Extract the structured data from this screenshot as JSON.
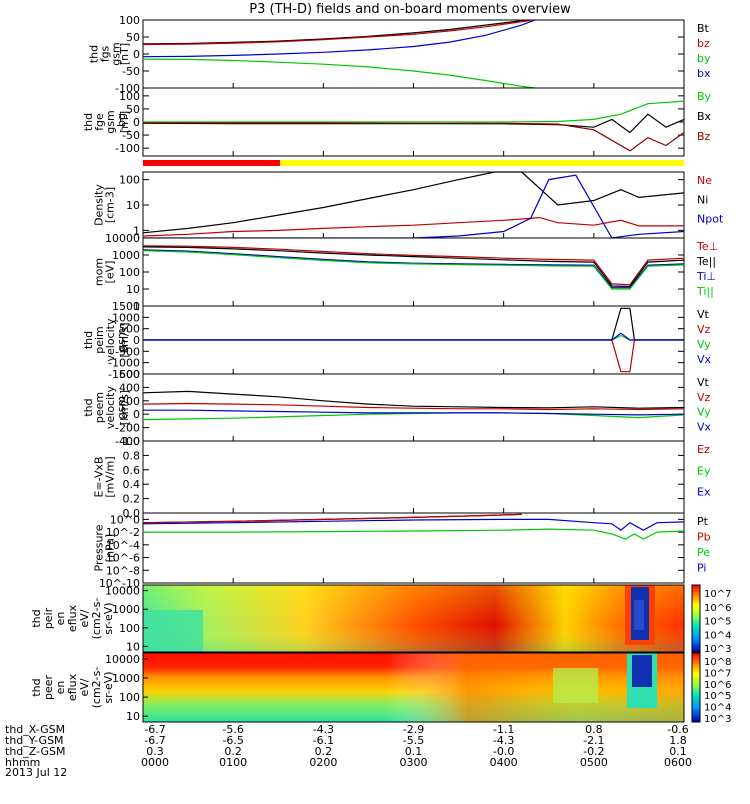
{
  "title": "P3 (TH-D) fields and on-board moments overview",
  "date_label": "2013 Jul 12",
  "chart_data": {
    "type": "line",
    "x_ticks": [
      "0000",
      "0100",
      "0200",
      "0300",
      "0400",
      "0500",
      "0600"
    ],
    "x_row_labels": [
      "thd_X-GSM",
      "thd_Y-GSM",
      "thd_Z-GSM",
      "hhmm"
    ],
    "x_row_values": [
      [
        "-6.7",
        "-5.6",
        "-4.3",
        "-2.9",
        "-1.1",
        "0.8",
        "-0.6"
      ],
      [
        "-6.7",
        "-6.5",
        "-6.1",
        "-5.5",
        "-4.3",
        "-2.1",
        "1.8"
      ],
      [
        "0.3",
        "0.2",
        "0.2",
        "0.1",
        "-0.0",
        "-0.2",
        "0.1"
      ]
    ],
    "panels": [
      {
        "ylabel": [
          "thd",
          "fgs",
          "gsm",
          "[nT]"
        ],
        "yticks": [
          "100",
          "50",
          "0",
          "-50",
          "-100"
        ],
        "ylim": [
          -100,
          100
        ],
        "series": [
          {
            "name": "Bt",
            "color": "#000000",
            "x": [
              0,
              0.5,
              1,
              1.5,
              2,
              2.5,
              3,
              3.4,
              3.8,
              4.2,
              4.35
            ],
            "y": [
              30,
              31,
              34,
              38,
              44,
              52,
              62,
              72,
              85,
              98,
              100
            ]
          },
          {
            "name": "bz",
            "color": "#c00000",
            "x": [
              0,
              0.5,
              1,
              1.5,
              2,
              2.5,
              3,
              3.4,
              3.8,
              4.2,
              4.35
            ],
            "y": [
              28,
              29,
              32,
              36,
              42,
              50,
              58,
              68,
              80,
              95,
              100
            ]
          },
          {
            "name": "by",
            "color": "#00c800",
            "x": [
              0,
              0.5,
              1,
              1.5,
              2,
              2.5,
              3,
              3.4,
              3.8,
              4.2,
              4.35
            ],
            "y": [
              -15,
              -16,
              -19,
              -24,
              -30,
              -38,
              -50,
              -62,
              -78,
              -95,
              -100
            ]
          },
          {
            "name": "bx",
            "color": "#0000d0",
            "x": [
              0,
              0.5,
              1,
              1.5,
              2,
              2.5,
              3,
              3.4,
              3.8,
              4.2,
              4.35
            ],
            "y": [
              -8,
              -7,
              -4,
              0,
              5,
              12,
              22,
              35,
              55,
              85,
              100
            ]
          }
        ]
      },
      {
        "ylabel": [
          "thd",
          "fge",
          "gsm",
          "-bg",
          "[nT]"
        ],
        "yticks": [
          "100",
          "50",
          "0",
          "-50",
          "-100"
        ],
        "ylim": [
          -130,
          130
        ],
        "series": [
          {
            "name": "By",
            "color": "#00c800",
            "x": [
              0,
              1,
              2,
              3,
              4,
              4.6,
              5,
              5.3,
              5.6,
              6
            ],
            "y": [
              0,
              0,
              0,
              0,
              0,
              2,
              10,
              30,
              70,
              80
            ]
          },
          {
            "name": "Bx",
            "color": "#000000",
            "x": [
              0,
              1,
              2,
              3,
              4,
              4.6,
              5,
              5.2,
              5.4,
              5.6,
              5.8,
              6
            ],
            "y": [
              -5,
              -6,
              -6,
              -6,
              -7,
              -10,
              -20,
              10,
              -40,
              30,
              -20,
              10
            ]
          },
          {
            "name": "Bz",
            "color": "#8b0000",
            "x": [
              0,
              1,
              2,
              3,
              4,
              4.6,
              5,
              5.2,
              5.4,
              5.6,
              5.8,
              6
            ],
            "y": [
              -3,
              -4,
              -4,
              -5,
              -5,
              -8,
              -30,
              -70,
              -110,
              -60,
              -90,
              -40
            ]
          }
        ]
      },
      {
        "ylabel": [
          "Density",
          "[cm-3]"
        ],
        "yticks": [
          "100",
          "10",
          "1"
        ],
        "ylim": [
          0.5,
          200
        ],
        "log": true,
        "series": [
          {
            "name": "Ne",
            "color": "#c00000",
            "x": [
              0,
              0.5,
              1,
              1.5,
              2,
              2.5,
              3,
              3.5,
              4,
              4.4,
              4.6,
              5,
              5.3,
              5.5,
              6
            ],
            "y": [
              0.6,
              0.7,
              0.9,
              1.0,
              1.2,
              1.4,
              1.6,
              2.0,
              2.5,
              3.2,
              2.0,
              1.6,
              2.5,
              1.5,
              1.5
            ]
          },
          {
            "name": "Ni",
            "color": "#000000",
            "x": [
              0,
              0.5,
              1,
              1.5,
              2,
              2.5,
              3,
              3.5,
              3.9,
              4.2,
              4.6,
              5,
              5.3,
              5.5,
              6
            ],
            "y": [
              0.8,
              1.2,
              2,
              4,
              8,
              18,
              40,
              100,
              200,
              200,
              10,
              15,
              40,
              20,
              30
            ]
          },
          {
            "name": "Npot",
            "color": "#0000d0",
            "x": [
              0,
              1,
              2,
              3,
              3.5,
              4,
              4.3,
              4.5,
              4.8,
              5.2,
              5.5,
              6
            ],
            "y": [
              0.5,
              0.5,
              0.5,
              0.5,
              0.6,
              0.9,
              3,
              100,
              150,
              0.5,
              0.7,
              0.9
            ]
          }
        ]
      },
      {
        "ylabel": [
          "mom",
          "[eV]"
        ],
        "yticks": [
          "10000",
          "1000",
          "100",
          "10",
          "1"
        ],
        "ylim": [
          1,
          10000
        ],
        "log": true,
        "series": [
          {
            "name": "Te⊥",
            "color": "#c00000",
            "x": [
              0,
              0.5,
              1,
              1.5,
              2,
              2.5,
              3,
              3.5,
              4,
              4.5,
              5,
              5.2,
              5.4,
              5.6,
              6
            ],
            "y": [
              3500,
              3300,
              2800,
              2200,
              1600,
              1200,
              950,
              800,
              650,
              550,
              500,
              20,
              18,
              500,
              650
            ]
          },
          {
            "name": "Te||",
            "color": "#000000",
            "x": [
              0,
              0.5,
              1,
              1.5,
              2,
              2.5,
              3,
              3.5,
              4,
              4.5,
              5,
              5.2,
              5.4,
              5.6,
              6
            ],
            "y": [
              3000,
              2800,
              2300,
              1800,
              1300,
              1000,
              800,
              650,
              520,
              420,
              380,
              15,
              14,
              380,
              500
            ]
          },
          {
            "name": "Ti⊥",
            "color": "#0000d0",
            "x": [
              0,
              0.5,
              1,
              1.5,
              2,
              2.5,
              3,
              3.5,
              4,
              4.5,
              5,
              5.2,
              5.4,
              5.6,
              6
            ],
            "y": [
              2000,
              1700,
              1200,
              800,
              550,
              400,
              330,
              300,
              280,
              260,
              250,
              12,
              12,
              250,
              300
            ]
          },
          {
            "name": "Ti||",
            "color": "#00c800",
            "x": [
              0,
              0.5,
              1,
              1.5,
              2,
              2.5,
              3,
              3.5,
              4,
              4.5,
              5,
              5.2,
              5.4,
              5.6,
              6
            ],
            "y": [
              1800,
              1500,
              1050,
              700,
              480,
              350,
              300,
              270,
              250,
              230,
              220,
              10,
              10,
              220,
              260
            ]
          }
        ]
      },
      {
        "ylabel": [
          "thd",
          "peim",
          "velocity",
          "gsm",
          "[km/s]"
        ],
        "yticks": [
          "1500",
          "1000",
          "500",
          "0",
          "-500",
          "-1000",
          "-1500"
        ],
        "ylim": [
          -1500,
          1500
        ],
        "series": [
          {
            "name": "Vt",
            "color": "#000000",
            "x": [
              0,
              2,
              4,
              5.2,
              5.3,
              5.4,
              5.45,
              6
            ],
            "y": [
              10,
              10,
              10,
              10,
              1400,
              1400,
              10,
              10
            ]
          },
          {
            "name": "Vz",
            "color": "#c00000",
            "x": [
              0,
              2,
              4,
              5.2,
              5.3,
              5.4,
              5.45,
              6
            ],
            "y": [
              0,
              0,
              0,
              0,
              -1400,
              -1400,
              0,
              0
            ]
          },
          {
            "name": "Vy",
            "color": "#00c800",
            "x": [
              0,
              2,
              4,
              5.2,
              5.3,
              5.4,
              6
            ],
            "y": [
              0,
              0,
              0,
              0,
              200,
              0,
              0
            ]
          },
          {
            "name": "Vx",
            "color": "#0000d0",
            "x": [
              0,
              2,
              4,
              5.2,
              5.3,
              5.4,
              6
            ],
            "y": [
              0,
              0,
              0,
              0,
              300,
              0,
              0
            ]
          }
        ]
      },
      {
        "ylabel": [
          "thd",
          "peem",
          "velocity",
          "gsm",
          "[km/s]"
        ],
        "yticks": [
          "600",
          "400",
          "200",
          "0",
          "-200",
          "-400"
        ],
        "ylim": [
          -400,
          600
        ],
        "series": [
          {
            "name": "Vt",
            "color": "#000000",
            "x": [
              0,
              0.5,
              1,
              1.5,
              2,
              2.5,
              3,
              3.5,
              4,
              4.5,
              5,
              5.5,
              6
            ],
            "y": [
              320,
              340,
              300,
              260,
              200,
              150,
              120,
              110,
              100,
              95,
              110,
              90,
              100
            ]
          },
          {
            "name": "Vz",
            "color": "#c00000",
            "x": [
              0,
              0.5,
              1,
              1.5,
              2,
              2.5,
              3,
              3.5,
              4,
              4.5,
              5,
              5.5,
              6
            ],
            "y": [
              150,
              160,
              150,
              140,
              120,
              100,
              90,
              80,
              80,
              70,
              80,
              70,
              80
            ]
          },
          {
            "name": "Vy",
            "color": "#00c800",
            "x": [
              0,
              0.5,
              1,
              1.5,
              2,
              2.5,
              3,
              3.5,
              4,
              4.5,
              5,
              5.5,
              6
            ],
            "y": [
              -80,
              -70,
              -60,
              -40,
              -20,
              0,
              10,
              20,
              20,
              10,
              -20,
              -50,
              -10
            ]
          },
          {
            "name": "Vx",
            "color": "#0000d0",
            "x": [
              0,
              0.5,
              1,
              1.5,
              2,
              2.5,
              3,
              3.5,
              4,
              4.5,
              5,
              5.5,
              6
            ],
            "y": [
              60,
              60,
              50,
              40,
              30,
              20,
              20,
              20,
              20,
              10,
              0,
              -10,
              0
            ]
          }
        ]
      },
      {
        "ylabel": [
          "E=-VxB",
          "[mV/m]"
        ],
        "yticks": [
          "1.0",
          "0.8",
          "0.6",
          "0.4",
          "0.2",
          "0.0"
        ],
        "ylim": [
          0,
          1
        ],
        "series": [
          {
            "name": "Ez",
            "color": "#c00000",
            "x": [],
            "y": []
          },
          {
            "name": "Ey",
            "color": "#00c800",
            "x": [],
            "y": []
          },
          {
            "name": "Ex",
            "color": "#0000d0",
            "x": [],
            "y": []
          }
        ]
      },
      {
        "ylabel": [
          "Pressure",
          "[nPa]"
        ],
        "yticks": [
          "10^0",
          "10^-2",
          "10^-4",
          "10^-6",
          "10^-8",
          "10^-10"
        ],
        "ylim": [
          1e-10,
          10
        ],
        "log": true,
        "series": [
          {
            "name": "Pt",
            "color": "#000000",
            "x": [
              0,
              1,
              2,
              3,
              3.8,
              4.2
            ],
            "y": [
              0.3,
              0.5,
              1.0,
              2,
              4,
              6
            ]
          },
          {
            "name": "Pb",
            "color": "#c00000",
            "x": [
              0,
              1,
              2,
              3,
              3.8,
              4.2
            ],
            "y": [
              0.3,
              0.5,
              1.0,
              2,
              4,
              6
            ]
          },
          {
            "name": "Pe",
            "color": "#00c800",
            "x": [
              0,
              1,
              2,
              3,
              4,
              4.5,
              5,
              5.2,
              5.35,
              5.45,
              5.55,
              5.7,
              6
            ],
            "y": [
              0.01,
              0.01,
              0.012,
              0.015,
              0.02,
              0.03,
              0.02,
              0.005,
              0.0008,
              0.005,
              0.0008,
              0.01,
              0.015
            ]
          },
          {
            "name": "Pi",
            "color": "#0000d0",
            "x": [
              0,
              1,
              2,
              3,
              4,
              4.5,
              5,
              5.2,
              5.3,
              5.4,
              5.55,
              5.7,
              6
            ],
            "y": [
              0.2,
              0.3,
              0.5,
              0.8,
              1.0,
              1.0,
              0.3,
              0.2,
              0.02,
              0.3,
              0.02,
              0.3,
              0.4
            ]
          }
        ]
      }
    ],
    "spectrograms": [
      {
        "ylabel": [
          "thd",
          "peir",
          "en",
          "eflux",
          "eV/",
          "(cm2-s-",
          "sr-eV)"
        ],
        "yticks": [
          "10000",
          "1000",
          "100",
          "10"
        ],
        "colorbar_ticks": [
          "10^7",
          "10^6",
          "10^5",
          "10^4",
          "10^3"
        ]
      },
      {
        "ylabel": [
          "thd",
          "peer",
          "en",
          "eflux",
          "eV/",
          "(cm2-s-",
          "sr-eV)"
        ],
        "yticks": [
          "10000",
          "1000",
          "100",
          "10"
        ],
        "colorbar_ticks": [
          "10^8",
          "10^7",
          "10^6",
          "10^5",
          "10^4",
          "10^3"
        ]
      }
    ]
  }
}
